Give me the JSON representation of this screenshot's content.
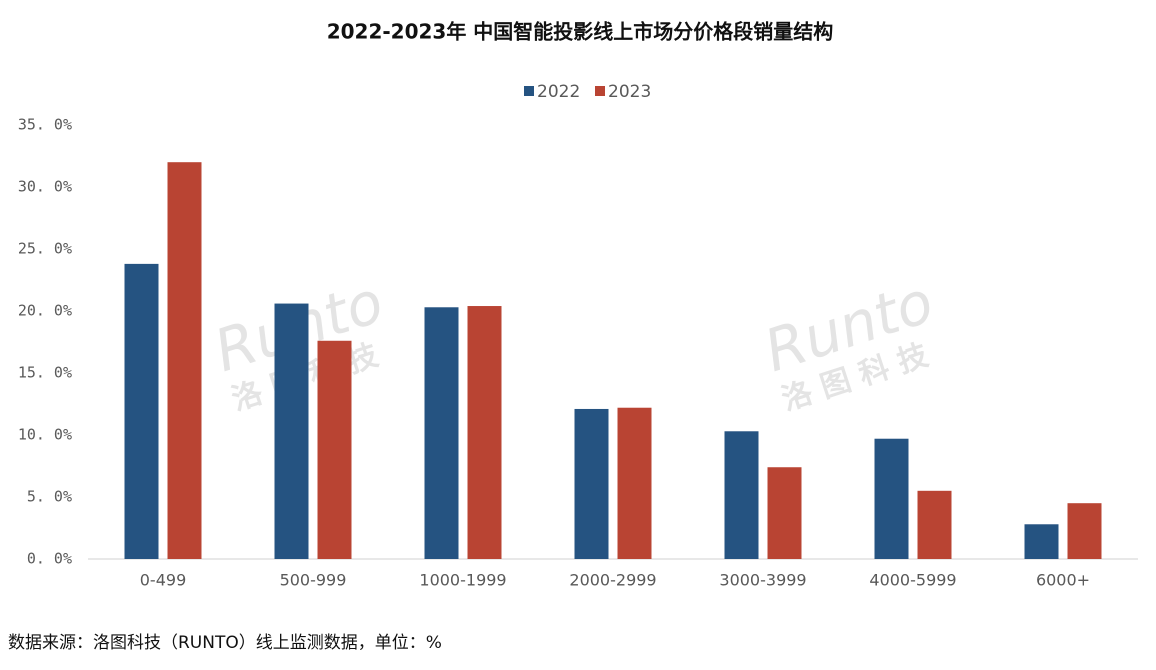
{
  "chart_data": {
    "type": "bar",
    "title": "2022-2023年 中国智能投影线上市场分价格段销量结构",
    "categories": [
      "0-499",
      "500-999",
      "1000-1999",
      "2000-2999",
      "3000-3999",
      "4000-5999",
      "6000+"
    ],
    "series": [
      {
        "name": "2022",
        "color": "#255381",
        "values": [
          23.8,
          20.6,
          20.3,
          12.1,
          10.3,
          9.7,
          2.8
        ]
      },
      {
        "name": "2023",
        "color": "#b94433",
        "values": [
          32.0,
          17.6,
          20.4,
          12.2,
          7.4,
          5.5,
          4.5
        ]
      }
    ],
    "ylim": [
      0,
      35
    ],
    "yticks": [
      {
        "value": 0,
        "label": "0. 0%"
      },
      {
        "value": 5,
        "label": "5. 0%"
      },
      {
        "value": 10,
        "label": "10. 0%"
      },
      {
        "value": 15,
        "label": "15. 0%"
      },
      {
        "value": 20,
        "label": "20. 0%"
      },
      {
        "value": 25,
        "label": "25. 0%"
      },
      {
        "value": 30,
        "label": "30. 0%"
      },
      {
        "value": 35,
        "label": "35. 0%"
      }
    ],
    "grid": false,
    "legend": "top",
    "watermark": "Runto",
    "watermark_sub": "洛 图 科 技",
    "source": "数据来源：洛图科技（RUNTO）线上监测数据，单位：%"
  }
}
